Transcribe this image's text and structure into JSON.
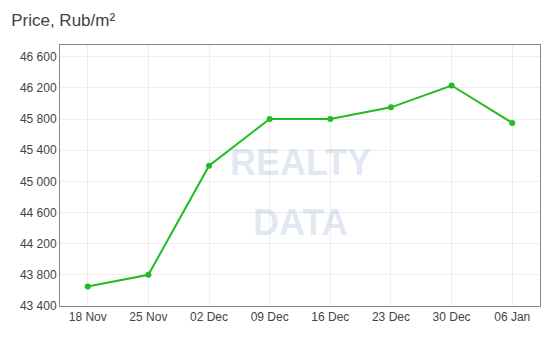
{
  "chart_data": {
    "type": "line",
    "title": "Price, Rub/m²",
    "categories": [
      "18 Nov",
      "25 Nov",
      "02 Dec",
      "09 Dec",
      "16 Dec",
      "23 Dec",
      "30 Dec",
      "06 Jan"
    ],
    "values": [
      43650,
      43800,
      45200,
      45800,
      45800,
      45950,
      46230,
      45750
    ],
    "color": "#22bb22",
    "marker": "circle",
    "ylim": [
      43400,
      46750
    ],
    "yticks": [
      {
        "value": 43400,
        "label": "43 400"
      },
      {
        "value": 43800,
        "label": "43 800"
      },
      {
        "value": 44200,
        "label": "44 200"
      },
      {
        "value": 44600,
        "label": "44 600"
      },
      {
        "value": 45000,
        "label": "45 000"
      },
      {
        "value": 45400,
        "label": "45 400"
      },
      {
        "value": 45800,
        "label": "45 800"
      },
      {
        "value": 46200,
        "label": "46 200"
      },
      {
        "value": 46600,
        "label": "46 600"
      }
    ],
    "annotations": [
      "REALTY",
      "DATA"
    ],
    "grid": true
  }
}
